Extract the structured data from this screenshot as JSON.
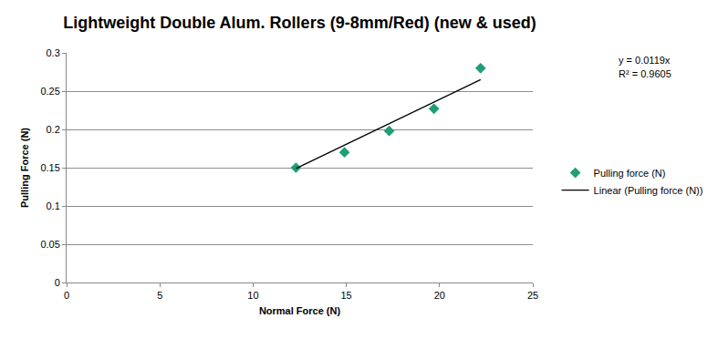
{
  "chart_data": {
    "type": "scatter",
    "title": "Lightweight Double Alum. Rollers (9-8mm/Red) (new & used)",
    "x_label": "Normal Force (N)",
    "y_label": "Pulling Force (N)",
    "series": [
      {
        "name": "Pulling force (N)",
        "type": "scatter",
        "marker": "diamond",
        "color": "#1f9e78",
        "x": [
          12.3,
          14.9,
          17.3,
          19.7,
          22.2
        ],
        "values": [
          0.15,
          0.17,
          0.198,
          0.227,
          0.28
        ]
      },
      {
        "name": "Linear (Pulling force (N))",
        "type": "line",
        "line_style": "solid",
        "color": "#000000",
        "x": [
          12.3,
          22.2
        ],
        "values": [
          0.149,
          0.265
        ]
      }
    ],
    "annotations": [
      "y = 0.0119x",
      "R² = 0.9605"
    ],
    "xlim": [
      0,
      25
    ],
    "xticks": [
      0,
      5,
      10,
      15,
      20,
      25
    ],
    "ylim": [
      0,
      0.3
    ],
    "yticks": [
      0,
      0.05,
      0.1,
      0.15,
      0.2,
      0.25,
      0.3
    ],
    "grid": "y",
    "legend": "right"
  }
}
